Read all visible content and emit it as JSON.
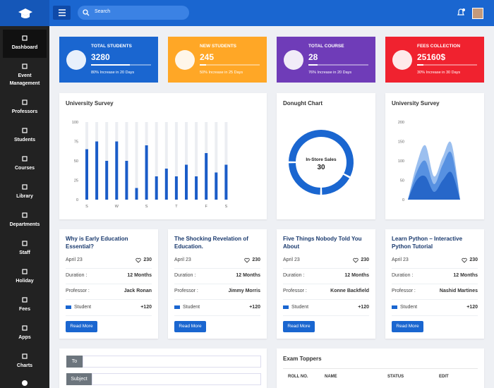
{
  "header": {
    "search_placeholder": "Search"
  },
  "sidebar": {
    "items": [
      "Dashboard",
      "Event Management",
      "Professors",
      "Students",
      "Courses",
      "Library",
      "Departments",
      "Staff",
      "Holiday",
      "Fees",
      "Apps",
      "Charts"
    ],
    "active": 0
  },
  "stats": [
    {
      "title": "TOTAL STUDENTS",
      "value": 3280,
      "note": "80% Increase in 20 Days",
      "progress": 65,
      "color": "#1a66d0"
    },
    {
      "title": "NEW STUDENTS",
      "value": 245,
      "note": "50% Increase in 25 Days",
      "progress": 10,
      "color": "#ffa726"
    },
    {
      "title": "TOTAL COURSE",
      "value": 28,
      "note": "76% Increase in 20 Days",
      "progress": 15,
      "color": "#6f3cb8"
    },
    {
      "title": "FEES COLLECTION",
      "value": "25160$",
      "note": "30% Increase in 30 Days",
      "progress": 10,
      "color": "#f0222f"
    }
  ],
  "charts": [
    {
      "type": "bar",
      "title": "University Survey",
      "categories": [
        "S",
        null,
        null,
        "W",
        null,
        null,
        "S",
        null,
        null,
        "T",
        null,
        null,
        "F",
        null,
        "S"
      ],
      "values": [
        65,
        75,
        50,
        75,
        50,
        15,
        70,
        30,
        40,
        30,
        45,
        30,
        60,
        35,
        45
      ],
      "ylim": [
        0,
        100
      ],
      "yticks": [
        0,
        25,
        50,
        75,
        100
      ],
      "color": "#1a5cc8",
      "track_color": "#eceef2"
    },
    {
      "type": "donut",
      "title": "Donught Chart",
      "center_label": "In-Store Sales",
      "center_index": 0,
      "values": [
        30,
        9,
        13
      ],
      "color": "#1a66d0"
    },
    {
      "type": "area",
      "title": "University Survey",
      "ylim": [
        0,
        200
      ],
      "yticks": [
        0,
        50,
        100,
        150,
        200
      ],
      "series": [
        {
          "color": "#8ab4ec",
          "values": [
            0,
            90,
            140,
            60,
            110,
            145,
            0
          ]
        },
        {
          "color": "#4b88de",
          "values": [
            0,
            70,
            100,
            40,
            90,
            120,
            0
          ]
        },
        {
          "color": "#1f5fc4",
          "values": [
            0,
            50,
            60,
            20,
            50,
            70,
            0
          ]
        }
      ]
    }
  ],
  "course_labels": {
    "duration": "Duration :",
    "professor": "Professor :",
    "student": "Student",
    "button": "Read More"
  },
  "courses": [
    {
      "title": "Why is Early Education Essential?",
      "date": "April 23",
      "likes": 230,
      "duration": "12 Months",
      "professor": "Jack Ronan",
      "students": "+120"
    },
    {
      "title": "The Shocking Revelation of Education.",
      "date": "April 23",
      "likes": 230,
      "duration": "12 Months",
      "professor": "Jimmy Morris",
      "students": "+120"
    },
    {
      "title": "Five Things Nobody Told You About",
      "date": "April 23",
      "likes": 230,
      "duration": "12 Months",
      "professor": "Konne Backfield",
      "students": "+120"
    },
    {
      "title": "Learn Python – Interactive Python Tutorial",
      "date": "April 23",
      "likes": 230,
      "duration": "12 Months",
      "professor": "Nashid Martines",
      "students": "+120"
    }
  ],
  "mail": {
    "to": "To",
    "subject": "Subject"
  },
  "exam_toppers": {
    "title": "Exam Toppers",
    "columns": [
      "ROLL NO.",
      "NAME",
      "STATUS",
      "EDIT"
    ]
  }
}
